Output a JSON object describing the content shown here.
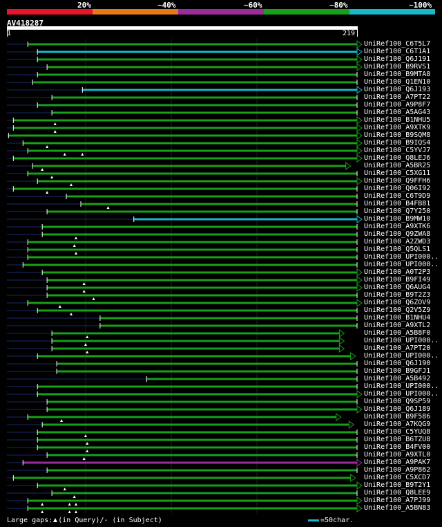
{
  "query": {
    "id": "AV418287",
    "start": "1",
    "end": "219"
  },
  "legend": {
    "labels": [
      "20%",
      "~40%",
      "~60%",
      "~80%",
      "~100%"
    ],
    "colors": [
      "#e8142c",
      "#e8781c",
      "#9c2c9c",
      "#18a018",
      "#18b8c8"
    ]
  },
  "footer": {
    "gaps_prefix": "Large gaps:",
    "gaps_query": "(in Query)/",
    "gaps_subject": "(in Subject)",
    "scale_text": "=50char."
  },
  "chart_data": {
    "type": "alignment",
    "query_length": 219,
    "hits": [
      {
        "name": "UniRef100_C6T5L7",
        "start": 14,
        "end": 219,
        "color": "green",
        "arrow": true,
        "gaps": []
      },
      {
        "name": "UniRef100_C6T1A1",
        "start": 20,
        "end": 219,
        "color": "cyan",
        "arrow": true,
        "gaps": []
      },
      {
        "name": "UniRef100_Q6J191",
        "start": 20,
        "end": 219,
        "color": "green",
        "arrow": true,
        "gaps": []
      },
      {
        "name": "UniRef100_B9RVS1",
        "start": 26,
        "end": 219,
        "color": "green",
        "arrow": true,
        "gaps": []
      },
      {
        "name": "UniRef100_B9MTA8",
        "start": 20,
        "end": 219,
        "color": "green",
        "arrow": false,
        "gaps": []
      },
      {
        "name": "UniRef100_Q1EN10",
        "start": 17,
        "end": 219,
        "color": "green",
        "arrow": false,
        "gaps": []
      },
      {
        "name": "UniRef100_Q6J193",
        "start": 48,
        "end": 219,
        "color": "cyan",
        "arrow": true,
        "gaps": []
      },
      {
        "name": "UniRef100_A7PT22",
        "start": 29,
        "end": 219,
        "color": "green",
        "arrow": false,
        "gaps": []
      },
      {
        "name": "UniRef100_A9P8F7",
        "start": 20,
        "end": 219,
        "color": "green",
        "arrow": false,
        "gaps": []
      },
      {
        "name": "UniRef100_A5AG43",
        "start": 29,
        "end": 219,
        "color": "green",
        "arrow": false,
        "gaps": []
      },
      {
        "name": "UniRef100_B1NHU5",
        "start": 5,
        "end": 219,
        "color": "green",
        "arrow": true,
        "gaps": [
          31
        ]
      },
      {
        "name": "UniRef100_A9XTK9",
        "start": 5,
        "end": 219,
        "color": "green",
        "arrow": true,
        "gaps": [
          31
        ]
      },
      {
        "name": "UniRef100_B9SQM8",
        "start": 2,
        "end": 219,
        "color": "green",
        "arrow": true,
        "gaps": []
      },
      {
        "name": "UniRef100_B9IQS4",
        "start": 11,
        "end": 219,
        "color": "green",
        "arrow": true,
        "gaps": [
          26
        ]
      },
      {
        "name": "UniRef100_C5YVJ7",
        "start": 14,
        "end": 219,
        "color": "green",
        "arrow": true,
        "gaps": [
          37,
          48
        ]
      },
      {
        "name": "UniRef100_Q8LEJ6",
        "start": 5,
        "end": 219,
        "color": "green",
        "arrow": true,
        "gaps": []
      },
      {
        "name": "UniRef100_A5BR25",
        "start": 17,
        "end": 212,
        "color": "green",
        "arrow": true,
        "gaps": [
          23
        ]
      },
      {
        "name": "UniRef100_C5XG11",
        "start": 14,
        "end": 219,
        "color": "green",
        "arrow": false,
        "gaps": [
          29
        ]
      },
      {
        "name": "UniRef100_Q9FFH6",
        "start": 20,
        "end": 219,
        "color": "green",
        "arrow": true,
        "gaps": [
          41
        ]
      },
      {
        "name": "UniRef100_Q06I92",
        "start": 5,
        "end": 219,
        "color": "green",
        "arrow": false,
        "gaps": [
          26
        ]
      },
      {
        "name": "UniRef100_C6T9D9",
        "start": 38,
        "end": 219,
        "color": "green",
        "arrow": false,
        "gaps": []
      },
      {
        "name": "UniRef100_B4FB81",
        "start": 47,
        "end": 219,
        "color": "green",
        "arrow": false,
        "gaps": [
          64
        ]
      },
      {
        "name": "UniRef100_Q7Y250",
        "start": 26,
        "end": 219,
        "color": "green",
        "arrow": false,
        "gaps": []
      },
      {
        "name": "UniRef100_B9MW10",
        "start": 80,
        "end": 219,
        "color": "cyan",
        "arrow": true,
        "gaps": []
      },
      {
        "name": "UniRef100_A9XTK6",
        "start": 23,
        "end": 219,
        "color": "green",
        "arrow": false,
        "gaps": []
      },
      {
        "name": "UniRef100_Q9ZWA8",
        "start": 23,
        "end": 219,
        "color": "green",
        "arrow": false,
        "gaps": [
          44
        ]
      },
      {
        "name": "UniRef100_A2ZWD3",
        "start": 14,
        "end": 219,
        "color": "green",
        "arrow": false,
        "gaps": [
          43
        ]
      },
      {
        "name": "UniRef100_Q5QLS1",
        "start": 14,
        "end": 219,
        "color": "green",
        "arrow": false,
        "gaps": [
          44
        ]
      },
      {
        "name": "UniRef100_UPI000..",
        "start": 14,
        "end": 219,
        "color": "green",
        "arrow": false,
        "gaps": []
      },
      {
        "name": "UniRef100_UPI000..",
        "start": 11,
        "end": 219,
        "color": "green",
        "arrow": false,
        "gaps": []
      },
      {
        "name": "UniRef100_A0T2P3",
        "start": 23,
        "end": 219,
        "color": "green",
        "arrow": true,
        "gaps": []
      },
      {
        "name": "UniRef100_B9FI49",
        "start": 26,
        "end": 219,
        "color": "green",
        "arrow": true,
        "gaps": [
          49
        ]
      },
      {
        "name": "UniRef100_Q6AUG4",
        "start": 26,
        "end": 219,
        "color": "green",
        "arrow": true,
        "gaps": [
          49
        ]
      },
      {
        "name": "UniRef100_B9T2Z3",
        "start": 26,
        "end": 219,
        "color": "green",
        "arrow": false,
        "gaps": [
          55
        ]
      },
      {
        "name": "UniRef100_Q6ZOV9",
        "start": 14,
        "end": 219,
        "color": "green",
        "arrow": true,
        "gaps": [
          34
        ]
      },
      {
        "name": "UniRef100_Q2V5Z9",
        "start": 20,
        "end": 219,
        "color": "green",
        "arrow": false,
        "gaps": [
          41
        ]
      },
      {
        "name": "UniRef100_B1NHU4",
        "start": 59,
        "end": 219,
        "color": "green",
        "arrow": false,
        "gaps": []
      },
      {
        "name": "UniRef100_A9XTL2",
        "start": 59,
        "end": 219,
        "color": "green",
        "arrow": false,
        "gaps": []
      },
      {
        "name": "UniRef100_A5B8F0",
        "start": 29,
        "end": 208,
        "color": "green",
        "arrow": true,
        "gaps": [
          51
        ]
      },
      {
        "name": "UniRef100_UPI000..",
        "start": 29,
        "end": 208,
        "color": "green",
        "arrow": true,
        "gaps": [
          50
        ]
      },
      {
        "name": "UniRef100_A7PT20",
        "start": 29,
        "end": 208,
        "color": "green",
        "arrow": true,
        "gaps": [
          51
        ]
      },
      {
        "name": "UniRef100_UPI000..",
        "start": 20,
        "end": 215,
        "color": "green",
        "arrow": true,
        "gaps": []
      },
      {
        "name": "UniRef100_Q6J190",
        "start": 32,
        "end": 219,
        "color": "green",
        "arrow": false,
        "gaps": []
      },
      {
        "name": "UniRef100_B9GFJ1",
        "start": 32,
        "end": 219,
        "color": "green",
        "arrow": false,
        "gaps": []
      },
      {
        "name": "UniRef100_A5B492",
        "start": 88,
        "end": 219,
        "color": "green",
        "arrow": false,
        "gaps": []
      },
      {
        "name": "UniRef100_UPI000..",
        "start": 20,
        "end": 219,
        "color": "green",
        "arrow": false,
        "gaps": []
      },
      {
        "name": "UniRef100_UPI000..",
        "start": 20,
        "end": 219,
        "color": "green",
        "arrow": true,
        "gaps": []
      },
      {
        "name": "UniRef100_Q9SP59",
        "start": 26,
        "end": 219,
        "color": "green",
        "arrow": false,
        "gaps": []
      },
      {
        "name": "UniRef100_Q6J189",
        "start": 26,
        "end": 219,
        "color": "green",
        "arrow": true,
        "gaps": []
      },
      {
        "name": "UniRef100_B9F586",
        "start": 14,
        "end": 206,
        "color": "green",
        "arrow": true,
        "gaps": [
          35
        ]
      },
      {
        "name": "UniRef100_A7KQG9",
        "start": 23,
        "end": 214,
        "color": "green",
        "arrow": true,
        "gaps": []
      },
      {
        "name": "UniRef100_C5YUQ8",
        "start": 20,
        "end": 219,
        "color": "green",
        "arrow": false,
        "gaps": [
          50
        ]
      },
      {
        "name": "UniRef100_B6TZU8",
        "start": 20,
        "end": 219,
        "color": "green",
        "arrow": false,
        "gaps": [
          51
        ]
      },
      {
        "name": "UniRef100_B4FV00",
        "start": 20,
        "end": 219,
        "color": "green",
        "arrow": false,
        "gaps": [
          51
        ]
      },
      {
        "name": "UniRef100_A9XTL0",
        "start": 26,
        "end": 219,
        "color": "green",
        "arrow": false,
        "gaps": [
          49
        ]
      },
      {
        "name": "UniRef100_A9PAK7",
        "start": 11,
        "end": 219,
        "color": "purple",
        "arrow": true,
        "gaps": []
      },
      {
        "name": "UniRef100_A9P862",
        "start": 26,
        "end": 219,
        "color": "green",
        "arrow": false,
        "gaps": []
      },
      {
        "name": "UniRef100_C5XCD7",
        "start": 5,
        "end": 215,
        "color": "green",
        "arrow": true,
        "gaps": []
      },
      {
        "name": "UniRef100_B9T2Y1",
        "start": 20,
        "end": 219,
        "color": "green",
        "arrow": true,
        "gaps": [
          37
        ]
      },
      {
        "name": "UniRef100_Q8LEE9",
        "start": 29,
        "end": 219,
        "color": "green",
        "arrow": false,
        "gaps": [
          43
        ]
      },
      {
        "name": "UniRef100_A7PJ99",
        "start": 14,
        "end": 219,
        "color": "green",
        "arrow": true,
        "gaps": [
          23,
          40,
          44
        ]
      },
      {
        "name": "UniRef100_A5BN83",
        "start": 14,
        "end": 219,
        "color": "green",
        "arrow": true,
        "gaps": [
          23,
          40,
          44
        ]
      }
    ]
  }
}
